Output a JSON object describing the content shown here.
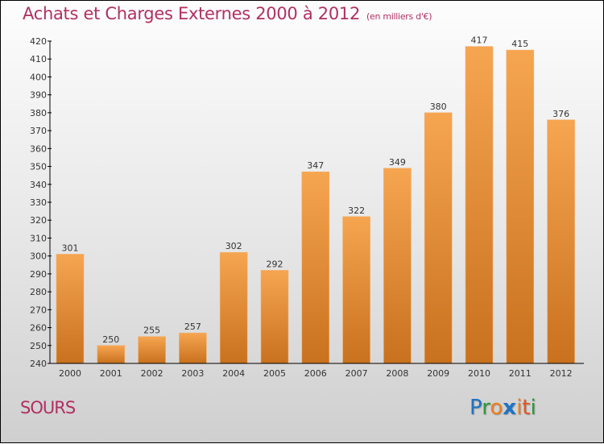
{
  "chart_data": {
    "type": "bar",
    "title": "Achats et Charges Externes 2000 à 2012",
    "subtitle": "(en milliers d'€)",
    "xlabel": "",
    "ylabel": "",
    "categories": [
      "2000",
      "2001",
      "2002",
      "2003",
      "2004",
      "2005",
      "2006",
      "2007",
      "2008",
      "2009",
      "2010",
      "2011",
      "2012"
    ],
    "values": [
      301,
      250,
      255,
      257,
      302,
      292,
      347,
      322,
      349,
      380,
      417,
      415,
      376
    ],
    "ylim": [
      240,
      420
    ],
    "yticks": [
      240,
      250,
      260,
      270,
      280,
      290,
      300,
      310,
      320,
      330,
      340,
      350,
      360,
      370,
      380,
      390,
      400,
      410,
      420
    ],
    "grid": false,
    "legend": "none",
    "bar_color_top": "#f6a550",
    "bar_color_bottom": "#c8711e"
  },
  "footer": {
    "place": "SOURS",
    "logo_letters": [
      {
        "ch": "P",
        "color": "#1f73c4"
      },
      {
        "ch": "r",
        "color": "#2e9a3a"
      },
      {
        "ch": "o",
        "color": "#f07d17"
      },
      {
        "ch": "x",
        "color": "#1f73c4"
      },
      {
        "ch": "i",
        "color": "#f07d17"
      },
      {
        "ch": "t",
        "color": "#e8551e"
      },
      {
        "ch": "i",
        "color": "#2e9a3a"
      }
    ]
  }
}
